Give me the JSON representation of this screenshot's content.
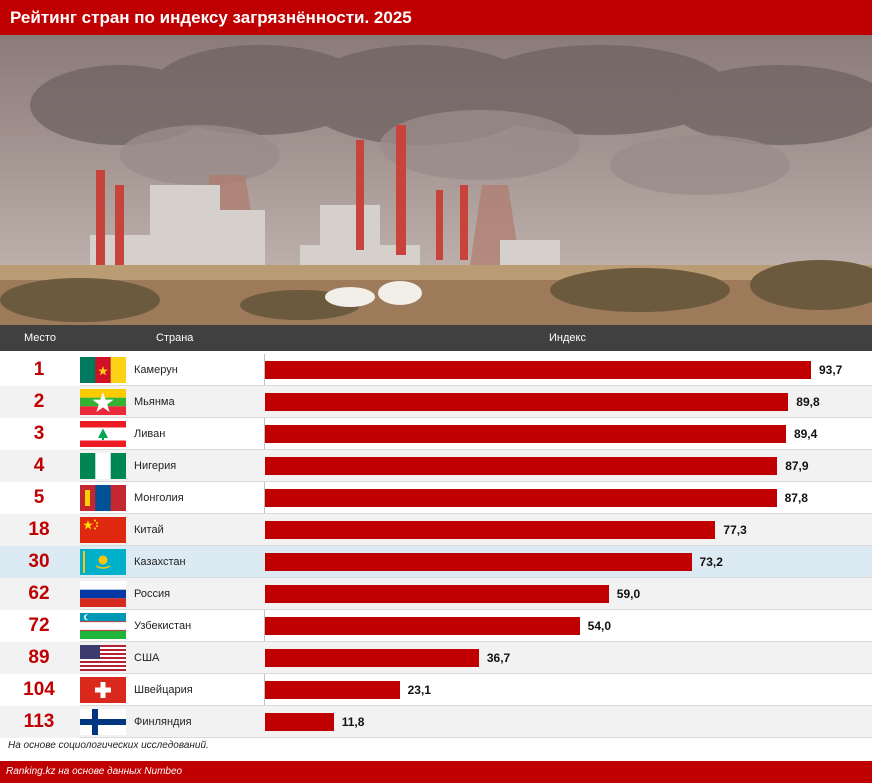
{
  "header": {
    "title": "Рейтинг стран по индексу загрязнённости. 2025"
  },
  "columns": {
    "rank": "Место",
    "country": "Страна",
    "index": "Индекс"
  },
  "chart_data": {
    "type": "bar",
    "orientation": "horizontal",
    "title": "Рейтинг стран по индексу загрязнённости. 2025",
    "xlim": [
      0,
      100
    ],
    "bar_color": "#c00000",
    "highlight_color": "#dcebf3",
    "categories": [
      "Камерун",
      "Мьянма",
      "Ливан",
      "Нигерия",
      "Монголия",
      "Китай",
      "Казахстан",
      "Россия",
      "Узбекистан",
      "США",
      "Швейцария",
      "Финляндия"
    ],
    "ranks": [
      "1",
      "2",
      "3",
      "4",
      "5",
      "18",
      "30",
      "62",
      "72",
      "89",
      "104",
      "113"
    ],
    "values": [
      93.7,
      89.8,
      89.4,
      87.9,
      87.8,
      77.3,
      73.2,
      59.0,
      54.0,
      36.7,
      23.1,
      11.8
    ],
    "value_labels": [
      "93,7",
      "89,8",
      "89,4",
      "87,9",
      "87,8",
      "77,3",
      "73,2",
      "59,0",
      "54,0",
      "36,7",
      "23,1",
      "11,8"
    ],
    "flags": [
      "cameroon-flag",
      "myanmar-flag",
      "lebanon-flag",
      "nigeria-flag",
      "mongolia-flag",
      "china-flag",
      "kazakhstan-flag",
      "russia-flag",
      "uzbekistan-flag",
      "usa-flag",
      "switzerland-flag",
      "finland-flag"
    ],
    "highlight": "Казахстан"
  },
  "note": "На основе социологических исследований.",
  "footer": {
    "source": "Ranking.kz на основе данных Numbeo"
  }
}
